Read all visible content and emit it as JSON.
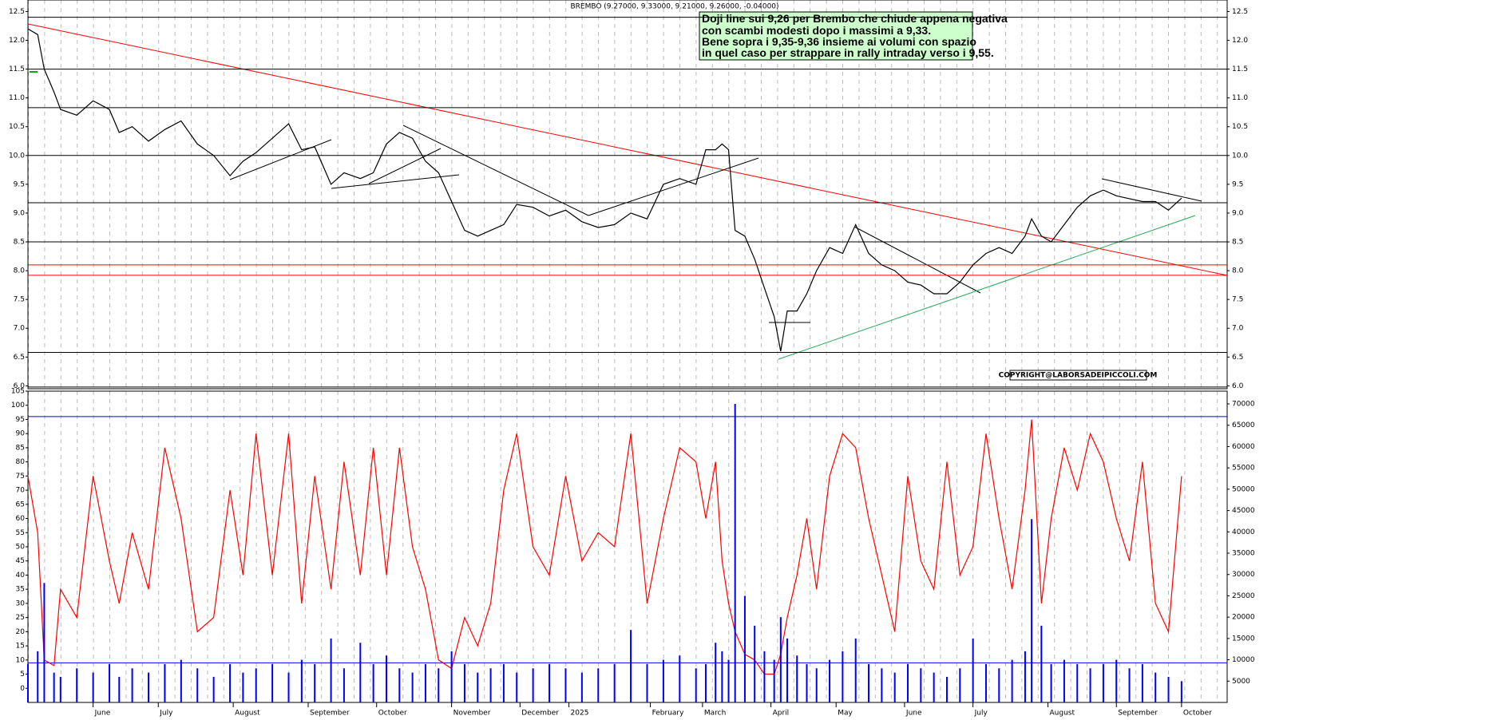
{
  "chart_data": [
    {
      "type": "line",
      "title": "BREMBO (9.27000, 9.33000, 9.21000, 9.26000, -0.04000)",
      "annotation": [
        "Doji line sui 9,26 per Brembo che chiude appena negativa",
        "con scambi modesti dopo i massimi a 9,33.",
        "Bene sopra i 9,35-9,36 insieme ai volumi con spazio",
        "in quel caso per strappare in rally intraday verso i 9,55."
      ],
      "copyright": "COPYRIGHT@LABORSADEIPICCOLI.COM",
      "x": [
        0,
        3,
        5,
        8,
        10,
        15,
        20,
        25,
        28,
        32,
        37,
        42,
        47,
        52,
        57,
        62,
        66,
        70,
        75,
        80,
        84,
        88,
        93,
        97,
        102,
        106,
        110,
        114,
        118,
        122,
        126,
        130,
        134,
        138,
        142,
        146,
        150,
        155,
        160,
        165,
        170,
        175,
        180,
        185,
        190,
        195,
        200,
        205,
        208,
        211,
        213,
        215,
        217,
        220,
        223,
        226,
        229,
        231,
        233,
        236,
        239,
        242,
        246,
        250,
        254,
        258,
        262,
        266,
        270,
        274,
        278,
        282,
        286,
        290,
        294,
        298,
        302,
        306,
        308,
        311,
        314,
        318,
        322,
        326,
        330,
        334,
        338,
        342,
        346,
        350,
        354
      ],
      "values": [
        12.2,
        12.1,
        11.5,
        11.1,
        10.8,
        10.7,
        10.95,
        10.8,
        10.4,
        10.5,
        10.25,
        10.45,
        10.6,
        10.2,
        10.0,
        9.65,
        9.9,
        10.05,
        10.3,
        10.55,
        10.1,
        10.15,
        9.5,
        9.7,
        9.6,
        9.7,
        10.2,
        10.4,
        10.3,
        9.9,
        9.7,
        9.2,
        8.7,
        8.6,
        8.7,
        8.8,
        9.15,
        9.1,
        8.95,
        9.05,
        8.85,
        8.75,
        8.8,
        9.0,
        8.9,
        9.5,
        9.6,
        9.5,
        10.1,
        10.1,
        10.2,
        10.1,
        8.7,
        8.6,
        8.2,
        7.7,
        7.2,
        6.6,
        7.3,
        7.3,
        7.6,
        8.0,
        8.4,
        8.3,
        8.8,
        8.3,
        8.1,
        8.0,
        7.8,
        7.75,
        7.6,
        7.6,
        7.8,
        8.1,
        8.3,
        8.4,
        8.3,
        8.6,
        8.9,
        8.6,
        8.5,
        8.8,
        9.1,
        9.3,
        9.4,
        9.3,
        9.25,
        9.2,
        9.2,
        9.05,
        9.26
      ],
      "color": "#000000",
      "xlim": [
        0,
        368
      ],
      "ylim": [
        5.95,
        12.7
      ],
      "yticks": [
        {
          "value": 6,
          "label": "6.0"
        },
        6.5,
        {
          "value": 7,
          "label": "7.0"
        },
        7.5,
        {
          "value": 8,
          "label": "8.0"
        },
        8.5,
        {
          "value": 9,
          "label": "9.0"
        },
        9.5,
        {
          "value": 10,
          "label": "10.0"
        },
        10.5,
        {
          "value": 11,
          "label": "11.0"
        },
        11.5,
        {
          "value": 12,
          "label": "12.0"
        },
        12.5
      ],
      "hlines": [
        {
          "value": 12.4,
          "color": "#000000"
        },
        {
          "value": 11.5,
          "color": "#000000"
        },
        {
          "value": 10.83,
          "color": "#000000"
        },
        {
          "value": 10.0,
          "color": "#000000"
        },
        {
          "value": 9.18,
          "color": "#000000"
        },
        {
          "value": 8.5,
          "color": "#000000"
        },
        {
          "value": 8.1,
          "color": "#ff0000"
        },
        {
          "value": 7.92,
          "color": "#ff0000"
        },
        {
          "value": 6.58,
          "color": "#000000"
        },
        {
          "value": 5.98,
          "color": "#000000"
        }
      ]
    },
    {
      "type": "line",
      "x": [
        0,
        3,
        5,
        8,
        10,
        15,
        20,
        25,
        28,
        32,
        37,
        42,
        47,
        52,
        57,
        62,
        66,
        70,
        75,
        80,
        84,
        88,
        93,
        97,
        102,
        106,
        110,
        114,
        118,
        122,
        126,
        130,
        134,
        138,
        142,
        146,
        150,
        155,
        160,
        165,
        170,
        175,
        180,
        185,
        190,
        195,
        200,
        205,
        208,
        211,
        213,
        215,
        217,
        220,
        223,
        226,
        229,
        231,
        233,
        236,
        239,
        242,
        246,
        250,
        254,
        258,
        262,
        266,
        270,
        274,
        278,
        282,
        286,
        290,
        294,
        298,
        302,
        306,
        308,
        311,
        314,
        318,
        322,
        326,
        330,
        334,
        338,
        342,
        346,
        350,
        354
      ],
      "series": [
        {
          "color": "#ff0000",
          "values": [
            75,
            55,
            10,
            8,
            35,
            25,
            75,
            45,
            30,
            55,
            35,
            85,
            60,
            20,
            25,
            70,
            40,
            90,
            40,
            90,
            30,
            75,
            35,
            80,
            40,
            85,
            40,
            85,
            50,
            35,
            10,
            7,
            25,
            15,
            30,
            70,
            90,
            50,
            40,
            75,
            45,
            55,
            50,
            90,
            30,
            60,
            85,
            80,
            60,
            80,
            45,
            30,
            20,
            12,
            10,
            5,
            5,
            12,
            25,
            40,
            60,
            35,
            75,
            90,
            85,
            60,
            40,
            20,
            75,
            45,
            35,
            80,
            40,
            50,
            90,
            60,
            35,
            70,
            95,
            30,
            60,
            85,
            70,
            90,
            80,
            60,
            45,
            80,
            30,
            20,
            75
          ]
        },
        {
          "color": "#0000ff",
          "type": "bar",
          "axis": "y2",
          "values": [
            9000,
            12000,
            28000,
            7000,
            6000,
            8000,
            7000,
            9000,
            6000,
            8000,
            7000,
            9000,
            10000,
            8000,
            6000,
            9000,
            7000,
            8000,
            9000,
            7000,
            10000,
            9000,
            15000,
            8000,
            14000,
            9000,
            11000,
            8000,
            7000,
            9000,
            8000,
            12000,
            9000,
            7000,
            8000,
            9000,
            7000,
            8000,
            9000,
            8000,
            7000,
            8000,
            9000,
            17000,
            9000,
            10000,
            11000,
            8000,
            9000,
            14000,
            12000,
            10000,
            70000,
            25000,
            18000,
            12000,
            10000,
            20000,
            15000,
            11000,
            9000,
            8000,
            10000,
            12000,
            15000,
            9000,
            8000,
            7000,
            9000,
            8000,
            7000,
            6000,
            8000,
            15000,
            9000,
            8000,
            10000,
            12000,
            43000,
            18000,
            9000,
            10000,
            9000,
            8000,
            9000,
            10000,
            8000,
            9000,
            7000,
            6000,
            5000
          ]
        }
      ],
      "xlim": [
        0,
        368
      ],
      "ylim": [
        -5,
        105
      ],
      "yticks": [
        0,
        5,
        10,
        15,
        20,
        25,
        30,
        35,
        40,
        45,
        50,
        55,
        60,
        65,
        70,
        75,
        80,
        85,
        90,
        95,
        100,
        105
      ],
      "y2lim": [
        0,
        73000
      ],
      "y2ticks": [
        5000,
        10000,
        15000,
        20000,
        25000,
        30000,
        35000,
        40000,
        45000,
        50000,
        55000,
        60000,
        65000,
        70000
      ],
      "xticks": [
        {
          "value": 20,
          "label": "June"
        },
        {
          "value": 40,
          "label": "July"
        },
        {
          "value": 63,
          "label": "August"
        },
        {
          "value": 86,
          "label": "September"
        },
        {
          "value": 107,
          "label": "October"
        },
        {
          "value": 130,
          "label": "November"
        },
        {
          "value": 151,
          "label": "December"
        },
        {
          "value": 166,
          "label": "2025"
        },
        {
          "value": 191,
          "label": "February"
        },
        {
          "value": 207,
          "label": "March"
        },
        {
          "value": 228,
          "label": "April"
        },
        {
          "value": 248,
          "label": "May"
        },
        {
          "value": 269,
          "label": "June"
        },
        {
          "value": 290,
          "label": "July"
        },
        {
          "value": 313,
          "label": "August"
        },
        {
          "value": 334,
          "label": "September"
        },
        {
          "value": 354,
          "label": "October"
        }
      ],
      "hlines": [
        {
          "value": 96,
          "color": "#0000ff"
        },
        {
          "value": 9,
          "color": "#0000ff"
        }
      ]
    }
  ]
}
